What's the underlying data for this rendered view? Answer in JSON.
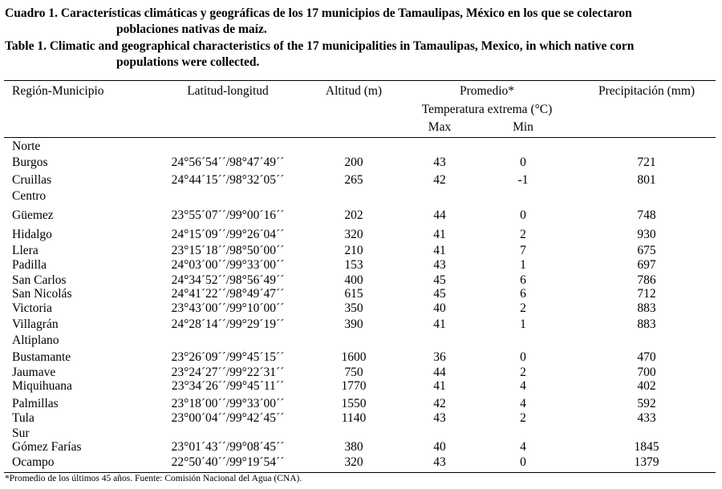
{
  "caption": {
    "es_line1": "Cuadro 1. Características climáticas y geográficas de los 17 municipios de Tamaulipas, México en los que se colectaron",
    "es_line2": "poblaciones nativas de maíz.",
    "en_line1": "Table 1. Climatic and geographical characteristics of the 17 municipalities in Tamaulipas, Mexico, in which native corn",
    "en_line2": "populations were collected."
  },
  "headers": {
    "region": "Región-Municipio",
    "latlong": "Latitud-longitud",
    "altitude": "Altitud (m)",
    "promedio": "Promedio*",
    "temp": "Temperatura extrema (°C)",
    "max": "Max",
    "min": "Min",
    "precip": "Precipitación (mm)"
  },
  "rows": [
    {
      "type": "region",
      "name": "Norte"
    },
    {
      "name": "Burgos",
      "latlong": "24°56´54´´/98°47´49´´",
      "alt": "200",
      "max": "43",
      "min": "0",
      "precip": "721"
    },
    {
      "name": "Cruillas",
      "latlong": "24°44´15´´/98°32´05´´",
      "alt": "265",
      "max": "42",
      "min": "-1",
      "precip": "801"
    },
    {
      "type": "region",
      "name": "Centro"
    },
    {
      "name": "Güemez",
      "latlong": "23°55´07´´/99°00´16´´",
      "alt": "202",
      "max": "44",
      "min": "0",
      "precip": "748"
    },
    {
      "name": "Hidalgo",
      "latlong": "24°15´09´´/99°26´04´´",
      "alt": "320",
      "max": "41",
      "min": "2",
      "precip": "930"
    },
    {
      "name": "Llera",
      "latlong": "23°15´18´´/98°50´00´´",
      "alt": "210",
      "max": "41",
      "min": "7",
      "precip": "675"
    },
    {
      "name": "Padilla",
      "latlong": "24°03´00´´/99°33´00´´",
      "alt": "153",
      "max": "43",
      "min": "1",
      "precip": "697"
    },
    {
      "name": "San Carlos",
      "latlong": "24°34´52´´/98°56´49´´",
      "alt": "400",
      "max": "45",
      "min": "6",
      "precip": "786"
    },
    {
      "name": "San Nicolás",
      "latlong": "24°41´22´´/98°49´47´´",
      "alt": "615",
      "max": "45",
      "min": "6",
      "precip": "712"
    },
    {
      "name": "Victoria",
      "latlong": "23°43´00´´/99°10´00´´",
      "alt": "350",
      "max": "40",
      "min": "2",
      "precip": "883"
    },
    {
      "name": "Villagrán",
      "latlong": "24°28´14´´/99°29´19´´",
      "alt": "390",
      "max": "41",
      "min": "1",
      "precip": "883"
    },
    {
      "type": "region",
      "name": "Altiplano"
    },
    {
      "name": "Bustamante",
      "latlong": "23°26´09´´/99°45´15´´",
      "alt": "1600",
      "max": "36",
      "min": "0",
      "precip": "470"
    },
    {
      "name": "Jaumave",
      "latlong": "23°24´27´´/99°22´31´´",
      "alt": "750",
      "max": "44",
      "min": "2",
      "precip": "700"
    },
    {
      "name": "Miquihuana",
      "latlong": "23°34´26´´/99°45´11´´",
      "alt": "1770",
      "max": "41",
      "min": "4",
      "precip": "402"
    },
    {
      "name": "Palmillas",
      "latlong": "23°18´00´´/99°33´00´´",
      "alt": "1550",
      "max": "42",
      "min": "4",
      "precip": "592"
    },
    {
      "name": "Tula",
      "latlong": "23°00´04´´/99°42´45´´",
      "alt": "1140",
      "max": "43",
      "min": "2",
      "precip": "433"
    },
    {
      "type": "region",
      "name": "Sur"
    },
    {
      "name": "Gómez Farías",
      "latlong": "23°01´43´´/99°08´45´´",
      "alt": "380",
      "max": "40",
      "min": "4",
      "precip": "1845"
    },
    {
      "name": "Ocampo",
      "latlong": "22°50´40´´/99°19´54´´",
      "alt": "320",
      "max": "43",
      "min": "0",
      "precip": "1379"
    }
  ],
  "footnote": "*Promedio de los últimos 45 años. Fuente: Comisión Nacional del Agua (CNA)."
}
